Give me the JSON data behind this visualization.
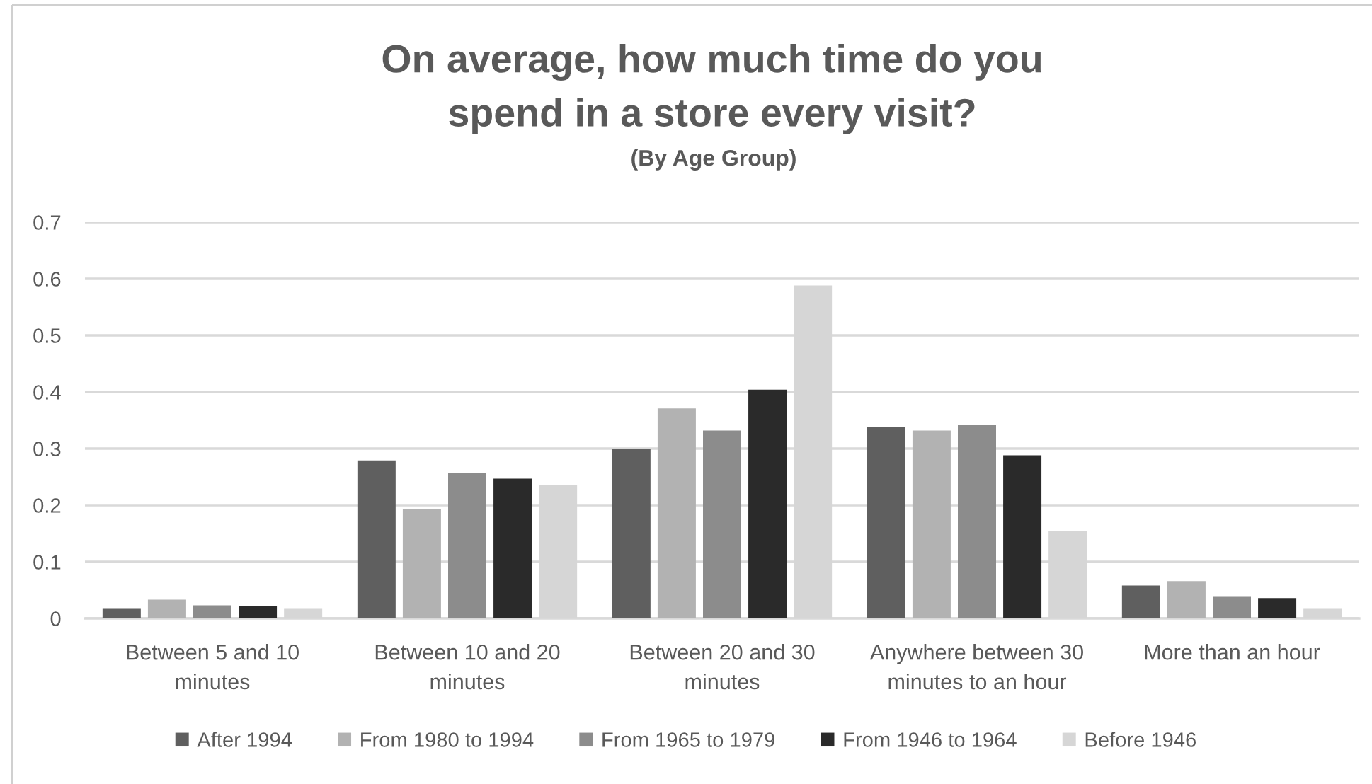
{
  "chart_data": {
    "type": "bar",
    "title": "On average, how much time do you\nspend in a store every visit?",
    "subtitle": "(By Age Group)",
    "categories": [
      "Between 5 and 10\nminutes",
      "Between 10 and 20\nminutes",
      "Between 20 and 30\nminutes",
      "Anywhere between 30\nminutes to an hour",
      "More than an hour"
    ],
    "series": [
      {
        "name": "After 1994",
        "color": "#5f5f5f",
        "values": [
          0.018,
          0.279,
          0.299,
          0.338,
          0.058
        ]
      },
      {
        "name": "From 1980 to 1994",
        "color": "#b2b2b2",
        "values": [
          0.033,
          0.193,
          0.371,
          0.332,
          0.066
        ]
      },
      {
        "name": "From 1965 to 1979",
        "color": "#8c8c8c",
        "values": [
          0.023,
          0.257,
          0.332,
          0.342,
          0.038
        ]
      },
      {
        "name": "From 1946 to 1964",
        "color": "#2a2a2a",
        "values": [
          0.022,
          0.247,
          0.404,
          0.288,
          0.036
        ]
      },
      {
        "name": "Before 1946",
        "color": "#d6d6d6",
        "values": [
          0.018,
          0.235,
          0.588,
          0.154,
          0.018
        ]
      }
    ],
    "ylim": [
      0,
      0.7
    ],
    "yticks": [
      0,
      0.1,
      0.2,
      0.3,
      0.4,
      0.5,
      0.6,
      0.7
    ],
    "grid": "y",
    "legend": "bottom"
  }
}
